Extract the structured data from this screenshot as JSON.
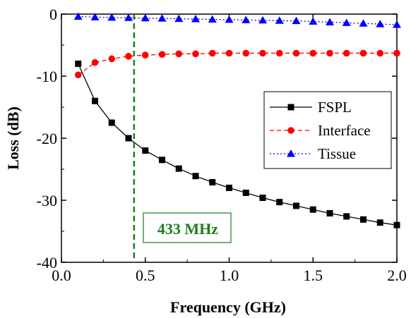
{
  "chart_data": {
    "type": "line",
    "xlabel": "Frequency (GHz)",
    "ylabel": "Loss (dB)",
    "xlim": [
      0.0,
      2.0
    ],
    "ylim": [
      -40,
      0
    ],
    "xticks": [
      0.0,
      0.5,
      1.0,
      1.5,
      2.0
    ],
    "xtick_labels": [
      "0.0",
      "0.5",
      "1.0",
      "1.5",
      "2.0"
    ],
    "yticks": [
      0,
      -10,
      -20,
      -30,
      -40
    ],
    "ytick_labels": [
      "0",
      "-10",
      "-20",
      "-30",
      "-40"
    ],
    "grid": false,
    "legend_position": "right",
    "x": [
      0.1,
      0.2,
      0.3,
      0.4,
      0.5,
      0.6,
      0.7,
      0.8,
      0.9,
      1.0,
      1.1,
      1.2,
      1.3,
      1.4,
      1.5,
      1.6,
      1.7,
      1.8,
      1.9,
      2.0
    ],
    "series": [
      {
        "name": "FSPL",
        "color": "#000000",
        "marker": "square",
        "line_style": "solid",
        "values": [
          -8.0,
          -14.0,
          -17.5,
          -20.0,
          -22.0,
          -23.5,
          -24.9,
          -26.1,
          -27.1,
          -28.0,
          -28.8,
          -29.6,
          -30.3,
          -30.9,
          -31.5,
          -32.1,
          -32.6,
          -33.1,
          -33.6,
          -34.0
        ]
      },
      {
        "name": "Interface",
        "color": "#ff0000",
        "marker": "circle",
        "line_style": "dashed",
        "values": [
          -9.8,
          -7.8,
          -7.2,
          -6.8,
          -6.6,
          -6.5,
          -6.4,
          -6.4,
          -6.3,
          -6.3,
          -6.3,
          -6.3,
          -6.3,
          -6.3,
          -6.3,
          -6.3,
          -6.3,
          -6.3,
          -6.3,
          -6.3
        ]
      },
      {
        "name": "Tissue",
        "color": "#0000ff",
        "marker": "triangle",
        "line_style": "dotted",
        "values": [
          -0.4,
          -0.5,
          -0.55,
          -0.6,
          -0.65,
          -0.7,
          -0.75,
          -0.8,
          -0.85,
          -0.9,
          -0.95,
          -1.0,
          -1.05,
          -1.1,
          -1.2,
          -1.3,
          -1.4,
          -1.5,
          -1.6,
          -1.7
        ]
      }
    ],
    "annotation": {
      "text": "433 MHz",
      "x": 0.433,
      "color": "#1a7f1a"
    }
  }
}
